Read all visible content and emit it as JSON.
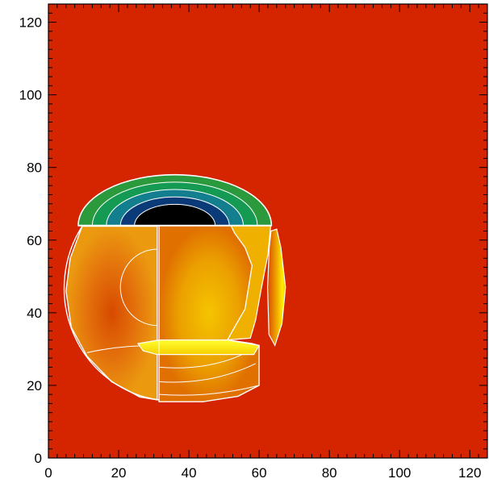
{
  "chart_data": {
    "type": "heatmap",
    "title": "",
    "xlabel": "",
    "ylabel": "",
    "xlim": [
      0,
      125
    ],
    "ylim": [
      0,
      125
    ],
    "x_ticks": [
      0,
      20,
      40,
      60,
      80,
      100,
      120
    ],
    "y_ticks": [
      0,
      20,
      40,
      60,
      80,
      100,
      120
    ],
    "x_tick_labels": [
      "0",
      "20",
      "40",
      "60",
      "80",
      "100",
      "120"
    ],
    "y_tick_labels": [
      "0",
      "20",
      "40",
      "60",
      "80",
      "100",
      "120"
    ],
    "background_color": "#d42500",
    "contour_color": "#ffffff",
    "sphere": {
      "center": [
        36,
        47
      ],
      "radius": 31
    },
    "regions": [
      {
        "name": "upper cap",
        "y_range": [
          64,
          78
        ],
        "colors": [
          "#000000",
          "#0a3b78",
          "#137e8e",
          "#159a54",
          "#2a9a3c"
        ]
      },
      {
        "name": "left hemisphere",
        "x_range": [
          5,
          31
        ],
        "y_range": [
          16,
          64
        ],
        "colors": [
          "#d74a00",
          "#e4730c",
          "#eb9a10"
        ]
      },
      {
        "name": "central column",
        "x_range": [
          31,
          63
        ],
        "y_range": [
          16,
          64
        ],
        "colors": [
          "#f5c400",
          "#eba000",
          "#e07000"
        ]
      },
      {
        "name": "right sliver",
        "x_range": [
          63,
          68
        ],
        "y_range": [
          31,
          64
        ],
        "colors": [
          "#fff000",
          "#f0b000",
          "#d84a00"
        ]
      },
      {
        "name": "lower band",
        "x_range": [
          25,
          58
        ],
        "y_range": [
          28,
          32
        ],
        "colors": [
          "#ffff30",
          "#f7d000"
        ]
      }
    ]
  }
}
